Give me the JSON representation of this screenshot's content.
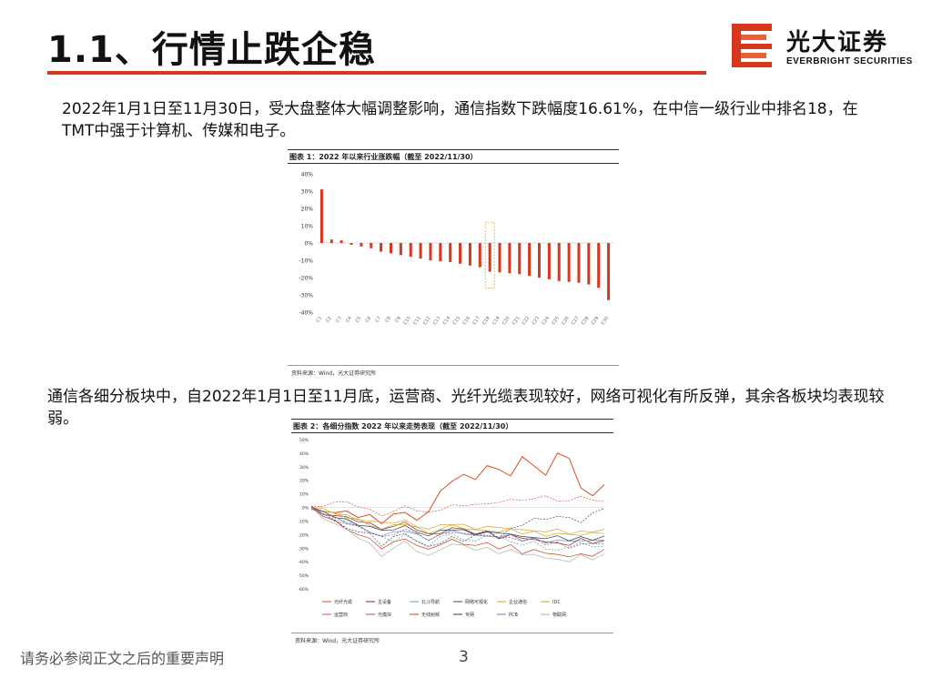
{
  "header": {
    "title": "1.1、行情止跌企稳",
    "logo_zh": "光大证券",
    "logo_en": "EVERBRIGHT SECURITIES"
  },
  "paragraph1": "2022年1月1日至11月30日，受大盘整体大幅调整影响，通信指数下跌幅度16.61%，在中信一级行业中排名18，在TMT中强于计算机、传媒和电子。",
  "paragraph2": "通信各细分板块中，自2022年1月1日至11月底，运营商、光纤光缆表现较好，网络可视化有所反弹，其余各板块均表现较弱。",
  "figure1": {
    "title": "图表 1：2022 年以来行业涨跌幅（截至 2022/11/30）",
    "source": "资料来源：Wind，光大证券研究所"
  },
  "figure2": {
    "title": "图表 2：各细分指数 2022 年以来走势表现（截至 2022/11/30）",
    "source": "资料来源：Wind，光大证券研究所"
  },
  "footer": {
    "disclaimer": "请务必参阅正文之后的重要声明",
    "page": "3"
  },
  "colors": {
    "accent": "#d9361f",
    "highlight_box": "#f0a030"
  },
  "chart_data": [
    {
      "type": "bar",
      "ylim": [
        -40,
        40
      ],
      "yticks": [
        "40%",
        "30%",
        "20%",
        "10%",
        "0%",
        "-10%",
        "-20%",
        "-30%",
        "-40%"
      ],
      "categories": [
        "C1",
        "C2",
        "C3",
        "C4",
        "C5",
        "C6",
        "C7",
        "C8",
        "C9",
        "C10",
        "C11",
        "C12",
        "C13",
        "C14",
        "C15",
        "C16",
        "C17",
        "C18",
        "C19",
        "C20",
        "C21",
        "C22",
        "C23",
        "C24",
        "C25",
        "C26",
        "C27",
        "C28",
        "C29",
        "C30"
      ],
      "highlight_index": 17,
      "values": [
        31,
        2,
        1.5,
        -1,
        -2,
        -3,
        -5,
        -6,
        -7,
        -8,
        -9,
        -10,
        -10.5,
        -11,
        -12,
        -13,
        -14,
        -16.6,
        -17,
        -17.5,
        -18,
        -19,
        -20,
        -21,
        -22,
        -22.5,
        -23,
        -24,
        -26,
        -33
      ]
    },
    {
      "type": "line",
      "ylim": [
        -60,
        50
      ],
      "yticks": [
        "50%",
        "40%",
        "30%",
        "20%",
        "10%",
        "0%",
        "-10%",
        "-20%",
        "-30%",
        "-40%",
        "-50%",
        "-60%"
      ],
      "legend": [
        "光纤光缆",
        "主设备",
        "北斗导航",
        "网络可视化",
        "企业通信",
        "IDC",
        "运营商",
        "光模块",
        "无线射频",
        "专网",
        "PCB",
        "物联网"
      ],
      "series": [
        {
          "name": "光纤光缆",
          "color": "#d9501f",
          "values": [
            0,
            -3,
            -5,
            -2,
            -8,
            -4,
            -12,
            -6,
            -3,
            -10,
            -2,
            12,
            18,
            25,
            20,
            32,
            28,
            22,
            38,
            30,
            25,
            40,
            35,
            15,
            8,
            18
          ]
        },
        {
          "name": "主设备",
          "color": "#8a2a1a",
          "values": [
            0,
            -4,
            -6,
            -8,
            -10,
            -12,
            -15,
            -14,
            -12,
            -16,
            -20,
            -18,
            -15,
            -17,
            -19,
            -18,
            -22,
            -20,
            -24,
            -23,
            -26,
            -25,
            -28,
            -24,
            -26,
            -25
          ]
        },
        {
          "name": "北斗导航",
          "color": "#5aa0b0",
          "values": [
            0,
            -5,
            -8,
            -10,
            -14,
            -18,
            -22,
            -24,
            -20,
            -26,
            -28,
            -22,
            -18,
            -24,
            -26,
            -20,
            -22,
            -24,
            -28,
            -26,
            -30,
            -32,
            -28,
            -26,
            -30,
            -28
          ]
        },
        {
          "name": "网络可视化",
          "color": "#444466",
          "values": [
            0,
            -6,
            -10,
            -14,
            -18,
            -20,
            -28,
            -22,
            -18,
            -25,
            -30,
            -26,
            -22,
            -24,
            -20,
            -18,
            -22,
            -16,
            -12,
            -8,
            -10,
            -6,
            -8,
            -10,
            -4,
            -2
          ]
        },
        {
          "name": "企业通信",
          "color": "#e0a020",
          "values": [
            0,
            -2,
            -4,
            -6,
            -8,
            -10,
            -12,
            -11,
            -10,
            -13,
            -16,
            -14,
            -12,
            -13,
            -15,
            -14,
            -16,
            -15,
            -17,
            -16,
            -18,
            -17,
            -19,
            -18,
            -17,
            -16
          ]
        },
        {
          "name": "IDC",
          "color": "#c8a830",
          "values": [
            0,
            -3,
            -5,
            -7,
            -9,
            -12,
            -16,
            -14,
            -12,
            -15,
            -18,
            -16,
            -14,
            -15,
            -17,
            -16,
            -18,
            -17,
            -19,
            -18,
            -20,
            -19,
            -21,
            -20,
            -19,
            -18
          ]
        },
        {
          "name": "运营商",
          "color": "#e05050",
          "values": [
            0,
            2,
            4,
            3,
            1,
            -2,
            -5,
            -3,
            0,
            -2,
            -4,
            -1,
            2,
            0,
            3,
            2,
            5,
            6,
            4,
            7,
            8,
            6,
            5,
            7,
            6,
            4
          ]
        },
        {
          "name": "光模块",
          "color": "#9a4a6a",
          "values": [
            0,
            -5,
            -9,
            -12,
            -15,
            -18,
            -22,
            -19,
            -16,
            -20,
            -24,
            -20,
            -17,
            -19,
            -21,
            -20,
            -23,
            -21,
            -25,
            -24,
            -27,
            -26,
            -29,
            -27,
            -28,
            -26
          ]
        },
        {
          "name": "无线射频",
          "color": "#c04020",
          "values": [
            0,
            -6,
            -10,
            -15,
            -20,
            -24,
            -30,
            -26,
            -22,
            -28,
            -32,
            -27,
            -24,
            -26,
            -28,
            -27,
            -30,
            -28,
            -33,
            -31,
            -35,
            -34,
            -37,
            -33,
            -36,
            -32
          ]
        },
        {
          "name": "专网",
          "color": "#2a3a5a",
          "values": [
            0,
            -4,
            -7,
            -9,
            -12,
            -14,
            -18,
            -16,
            -14,
            -17,
            -21,
            -18,
            -16,
            -17,
            -19,
            -18,
            -20,
            -19,
            -22,
            -21,
            -23,
            -22,
            -24,
            -22,
            -23,
            -21
          ]
        },
        {
          "name": "PCB",
          "color": "#6a8ab0",
          "values": [
            0,
            -5,
            -8,
            -11,
            -14,
            -17,
            -21,
            -19,
            -17,
            -20,
            -23,
            -20,
            -18,
            -19,
            -21,
            -20,
            -22,
            -21,
            -24,
            -23,
            -25,
            -24,
            -26,
            -24,
            -25,
            -23
          ]
        },
        {
          "name": "物联网",
          "color": "#b0b0b0",
          "values": [
            0,
            -7,
            -12,
            -17,
            -22,
            -27,
            -35,
            -30,
            -26,
            -32,
            -36,
            -30,
            -27,
            -29,
            -31,
            -30,
            -33,
            -31,
            -36,
            -34,
            -38,
            -37,
            -40,
            -36,
            -38,
            -35
          ]
        }
      ]
    }
  ]
}
